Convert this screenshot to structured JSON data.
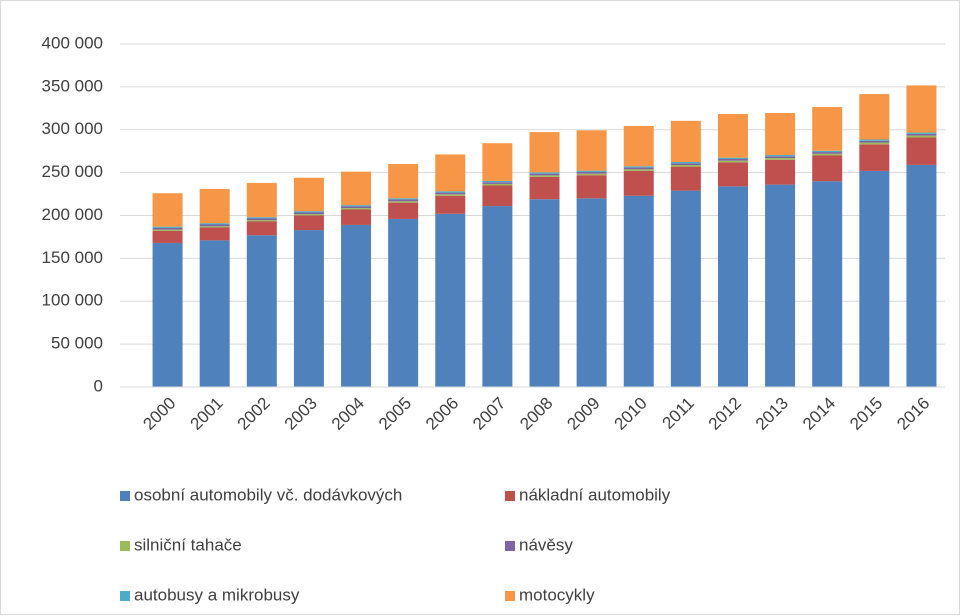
{
  "chart_data": {
    "type": "bar",
    "stacked": true,
    "categories": [
      "2000",
      "2001",
      "2002",
      "2003",
      "2004",
      "2005",
      "2006",
      "2007",
      "2008",
      "2009",
      "2010",
      "2011",
      "2012",
      "2013",
      "2014",
      "2015",
      "2016"
    ],
    "series": [
      {
        "name": "osobní automobily vč. dodávkových",
        "color": "#4f81bd",
        "values": [
          168000,
          171000,
          177000,
          183000,
          189000,
          196000,
          202000,
          211000,
          219000,
          220000,
          223000,
          229000,
          234000,
          236000,
          240000,
          252000,
          259000
        ]
      },
      {
        "name": "nákladní automobily",
        "color": "#c0504d",
        "values": [
          14000,
          15000,
          16000,
          17000,
          18000,
          19000,
          21000,
          24000,
          26000,
          27000,
          29000,
          28000,
          28000,
          29000,
          30000,
          31000,
          32000
        ]
      },
      {
        "name": "silniční tahače",
        "color": "#9bbb59",
        "values": [
          1500,
          1500,
          1500,
          1500,
          1600,
          1600,
          1700,
          1800,
          1800,
          1800,
          1900,
          1900,
          1900,
          2000,
          2000,
          2100,
          2200
        ]
      },
      {
        "name": "návěsy",
        "color": "#8064a2",
        "values": [
          2000,
          2000,
          2000,
          2000,
          2000,
          2000,
          2000,
          2000,
          2000,
          2000,
          2000,
          2000,
          2000,
          2000,
          2000,
          2000,
          2000
        ]
      },
      {
        "name": "autobusy a mikrobusy",
        "color": "#4bacc6",
        "values": [
          1500,
          1500,
          1500,
          1500,
          1500,
          1500,
          1500,
          1500,
          1500,
          1500,
          1500,
          1500,
          1500,
          1500,
          1500,
          1500,
          1500
        ]
      },
      {
        "name": "motocykly",
        "color": "#f79646",
        "values": [
          39000,
          40000,
          40000,
          39000,
          39000,
          40000,
          43000,
          44000,
          47000,
          47000,
          47000,
          48000,
          51000,
          49000,
          51000,
          53000,
          55000
        ]
      }
    ],
    "ylim": [
      0,
      400000
    ],
    "yticks": [
      0,
      {
        "value": 50000,
        "label": "50 000"
      },
      {
        "value": 100000,
        "label": "100 000"
      },
      {
        "value": 150000,
        "label": "150 000"
      },
      {
        "value": 200000,
        "label": "200 000"
      },
      {
        "value": 250000,
        "label": "250 000"
      },
      {
        "value": 300000,
        "label": "300 000"
      },
      {
        "value": 350000,
        "label": "350 000"
      },
      {
        "value": 400000,
        "label": "400 000"
      }
    ],
    "grid": true,
    "legend": "bottom"
  }
}
